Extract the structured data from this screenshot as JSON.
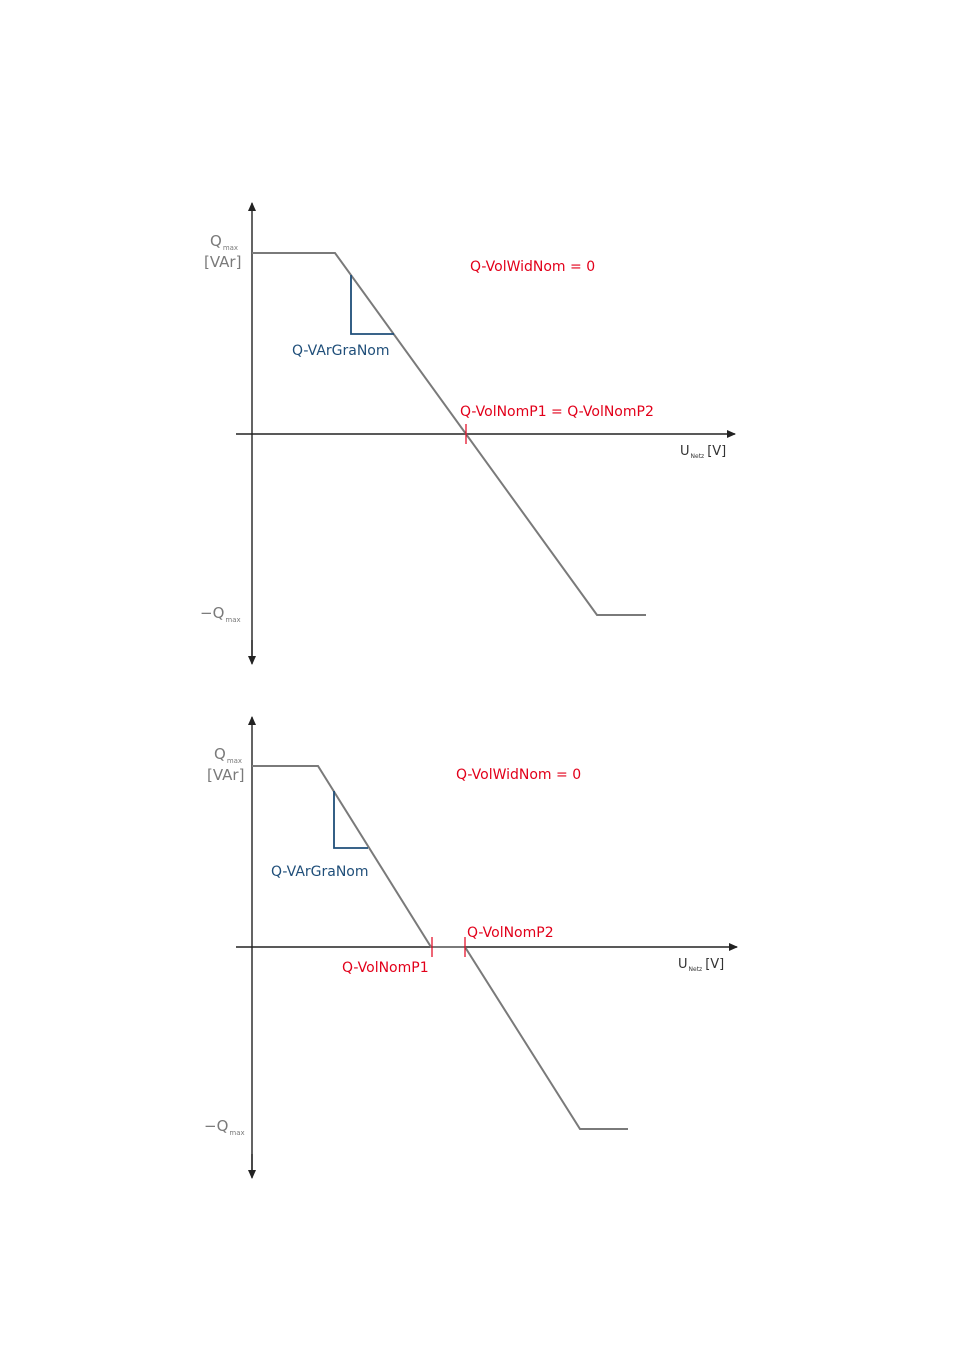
{
  "diagrams": [
    {
      "q_max_label": "Q",
      "q_max_sub": "max",
      "unit_label": "[VAr]",
      "neg_q_max_label": "−Q",
      "neg_q_max_sub": "max",
      "x_axis_label": "U",
      "x_axis_sub": "Netz",
      "x_axis_unit": "[V]",
      "vol_wid_label": "Q-VolWidNom = 0",
      "gradient_label": "Q-VArGraNom",
      "nom_point_label": "Q-VolNomP1 = Q-VolNomP2"
    },
    {
      "q_max_label": "Q",
      "q_max_sub": "max",
      "unit_label": "[VAr]",
      "neg_q_max_label": "−Q",
      "neg_q_max_sub": "max",
      "x_axis_label": "U",
      "x_axis_sub": "Netz",
      "x_axis_unit": "[V]",
      "vol_wid_label": "Q-VolWidNom = 0",
      "gradient_label": "Q-VArGraNom",
      "nom_p1_label": "Q-VolNomP1",
      "nom_p2_label": "Q-VolNomP2"
    }
  ],
  "colors": {
    "curve": "#7a7a7a",
    "axis": "#222222",
    "parameter_red": "#e2001a",
    "gradient_blue": "#1f4e79"
  }
}
